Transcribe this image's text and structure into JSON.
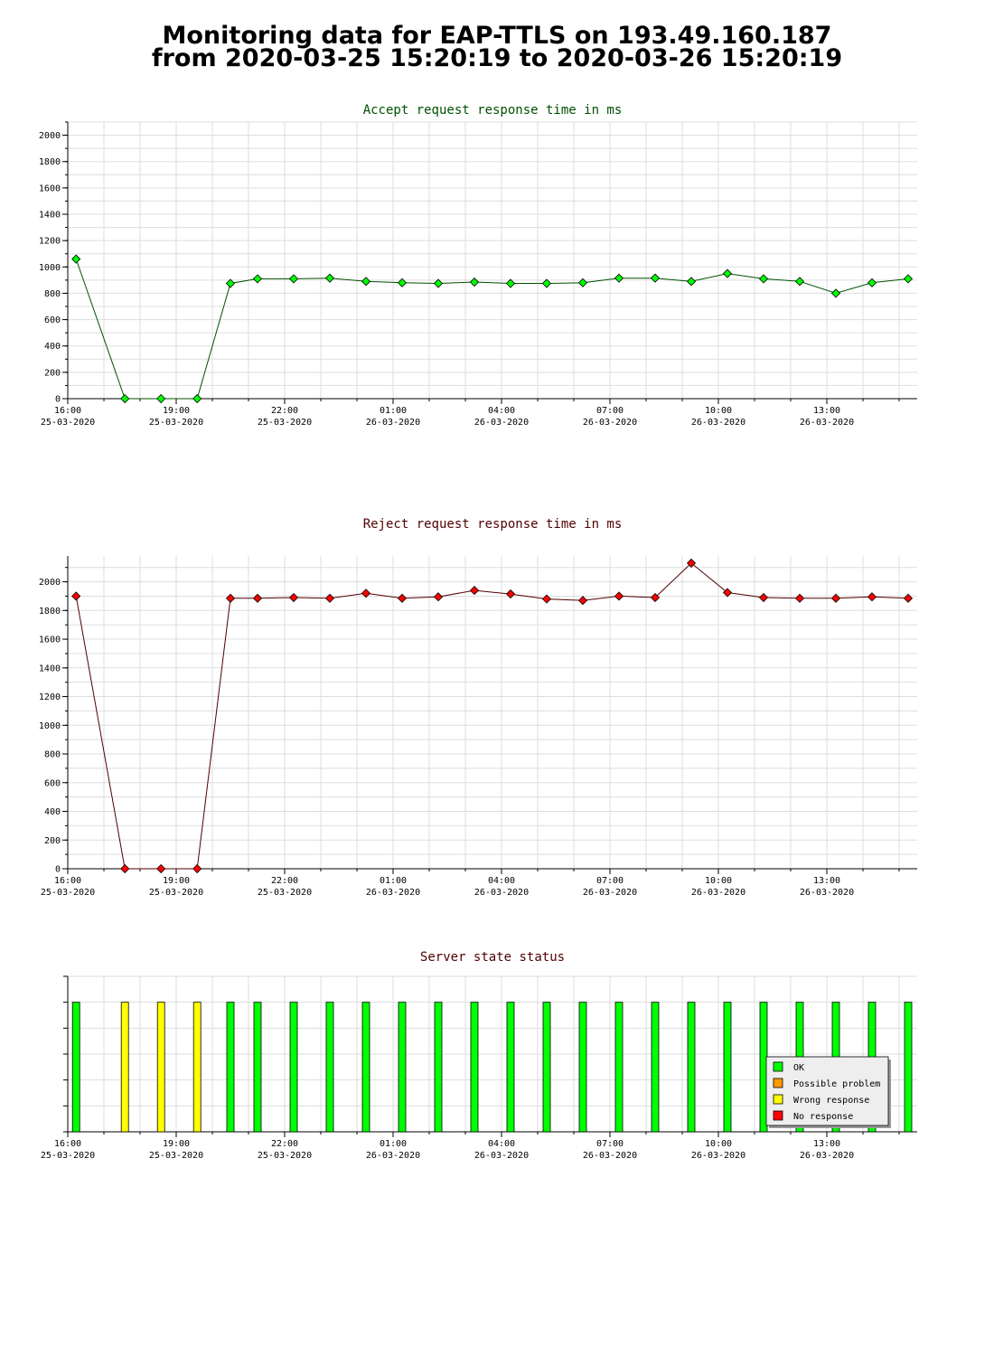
{
  "page": {
    "title_line1": "Monitoring data for EAP-TTLS on 193.49.160.187",
    "title_line2": "from 2020-03-25 15:20:19 to 2020-03-26 15:20:19"
  },
  "colors": {
    "accept_title": "#005000",
    "reject_title": "#500000",
    "status_title": "#500000",
    "accept_line": "#005000",
    "accept_marker": "#00ff00",
    "reject_line": "#500000",
    "reject_marker": "#ff0000",
    "ok": "#00ff00",
    "possible_problem": "#ff9900",
    "wrong_response": "#ffff00",
    "no_response": "#ff0000",
    "grid": "#dddddd"
  },
  "time_axis": {
    "ticks": [
      {
        "t": 0.67,
        "time": "16:00",
        "date": "25-03-2020"
      },
      {
        "t": 3.67,
        "time": "19:00",
        "date": "25-03-2020"
      },
      {
        "t": 6.67,
        "time": "22:00",
        "date": "25-03-2020"
      },
      {
        "t": 9.67,
        "time": "01:00",
        "date": "26-03-2020"
      },
      {
        "t": 12.67,
        "time": "04:00",
        "date": "26-03-2020"
      },
      {
        "t": 15.67,
        "time": "07:00",
        "date": "26-03-2020"
      },
      {
        "t": 18.67,
        "time": "10:00",
        "date": "26-03-2020"
      },
      {
        "t": 21.67,
        "time": "13:00",
        "date": "26-03-2020"
      }
    ]
  },
  "chart_data": [
    {
      "id": "accept",
      "type": "line",
      "title": "Accept request response time in ms",
      "xlim": [
        0.67,
        24.17
      ],
      "ylim": [
        0,
        2100
      ],
      "yticks": [
        0,
        200,
        400,
        600,
        800,
        1000,
        1200,
        1400,
        1600,
        1800,
        2000
      ],
      "grid": true,
      "points": [
        {
          "t": 0.9,
          "v": 1060
        },
        {
          "t": 2.25,
          "v": 0
        },
        {
          "t": 3.25,
          "v": 0
        },
        {
          "t": 4.25,
          "v": 0
        },
        {
          "t": 5.17,
          "v": 875
        },
        {
          "t": 5.92,
          "v": 910
        },
        {
          "t": 6.92,
          "v": 910
        },
        {
          "t": 7.92,
          "v": 915
        },
        {
          "t": 8.92,
          "v": 890
        },
        {
          "t": 9.92,
          "v": 880
        },
        {
          "t": 10.92,
          "v": 875
        },
        {
          "t": 11.92,
          "v": 885
        },
        {
          "t": 12.92,
          "v": 875
        },
        {
          "t": 13.92,
          "v": 875
        },
        {
          "t": 14.92,
          "v": 880
        },
        {
          "t": 15.92,
          "v": 915
        },
        {
          "t": 16.92,
          "v": 915
        },
        {
          "t": 17.92,
          "v": 890
        },
        {
          "t": 18.92,
          "v": 950
        },
        {
          "t": 19.92,
          "v": 910
        },
        {
          "t": 20.92,
          "v": 890
        },
        {
          "t": 21.92,
          "v": 800
        },
        {
          "t": 22.92,
          "v": 880
        },
        {
          "t": 23.92,
          "v": 910
        }
      ]
    },
    {
      "id": "reject",
      "type": "line",
      "title": "Reject request response time in ms",
      "xlim": [
        0.67,
        24.17
      ],
      "ylim": [
        0,
        2180
      ],
      "yticks": [
        0,
        200,
        400,
        600,
        800,
        1000,
        1200,
        1400,
        1600,
        1800,
        2000
      ],
      "grid": true,
      "points": [
        {
          "t": 0.9,
          "v": 1900
        },
        {
          "t": 2.25,
          "v": 0
        },
        {
          "t": 3.25,
          "v": 0
        },
        {
          "t": 4.25,
          "v": 0
        },
        {
          "t": 5.17,
          "v": 1885
        },
        {
          "t": 5.92,
          "v": 1885
        },
        {
          "t": 6.92,
          "v": 1890
        },
        {
          "t": 7.92,
          "v": 1885
        },
        {
          "t": 8.92,
          "v": 1920
        },
        {
          "t": 9.92,
          "v": 1885
        },
        {
          "t": 10.92,
          "v": 1895
        },
        {
          "t": 11.92,
          "v": 1940
        },
        {
          "t": 12.92,
          "v": 1915
        },
        {
          "t": 13.92,
          "v": 1880
        },
        {
          "t": 14.92,
          "v": 1870
        },
        {
          "t": 15.92,
          "v": 1900
        },
        {
          "t": 16.92,
          "v": 1890
        },
        {
          "t": 17.92,
          "v": 2130
        },
        {
          "t": 18.92,
          "v": 1925
        },
        {
          "t": 19.92,
          "v": 1890
        },
        {
          "t": 20.92,
          "v": 1885
        },
        {
          "t": 21.92,
          "v": 1885
        },
        {
          "t": 22.92,
          "v": 1895
        },
        {
          "t": 23.92,
          "v": 1885
        }
      ]
    },
    {
      "id": "status",
      "type": "bar",
      "title": "Server state status",
      "xlim": [
        0.67,
        24.17
      ],
      "grid": true,
      "legend_position": "bottom-right",
      "legend": [
        {
          "state": "ok",
          "label": "OK"
        },
        {
          "state": "possible_problem",
          "label": "Possible problem"
        },
        {
          "state": "wrong_response",
          "label": "Wrong response"
        },
        {
          "state": "no_response",
          "label": "No response"
        }
      ],
      "bars": [
        {
          "t": 0.9,
          "state": "ok"
        },
        {
          "t": 2.25,
          "state": "wrong_response"
        },
        {
          "t": 3.25,
          "state": "wrong_response"
        },
        {
          "t": 4.25,
          "state": "wrong_response"
        },
        {
          "t": 5.17,
          "state": "ok"
        },
        {
          "t": 5.92,
          "state": "ok"
        },
        {
          "t": 6.92,
          "state": "ok"
        },
        {
          "t": 7.92,
          "state": "ok"
        },
        {
          "t": 8.92,
          "state": "ok"
        },
        {
          "t": 9.92,
          "state": "ok"
        },
        {
          "t": 10.92,
          "state": "ok"
        },
        {
          "t": 11.92,
          "state": "ok"
        },
        {
          "t": 12.92,
          "state": "ok"
        },
        {
          "t": 13.92,
          "state": "ok"
        },
        {
          "t": 14.92,
          "state": "ok"
        },
        {
          "t": 15.92,
          "state": "ok"
        },
        {
          "t": 16.92,
          "state": "ok"
        },
        {
          "t": 17.92,
          "state": "ok"
        },
        {
          "t": 18.92,
          "state": "ok"
        },
        {
          "t": 19.92,
          "state": "ok"
        },
        {
          "t": 20.92,
          "state": "ok"
        },
        {
          "t": 21.92,
          "state": "ok"
        },
        {
          "t": 22.92,
          "state": "ok"
        },
        {
          "t": 23.92,
          "state": "ok"
        }
      ]
    }
  ]
}
